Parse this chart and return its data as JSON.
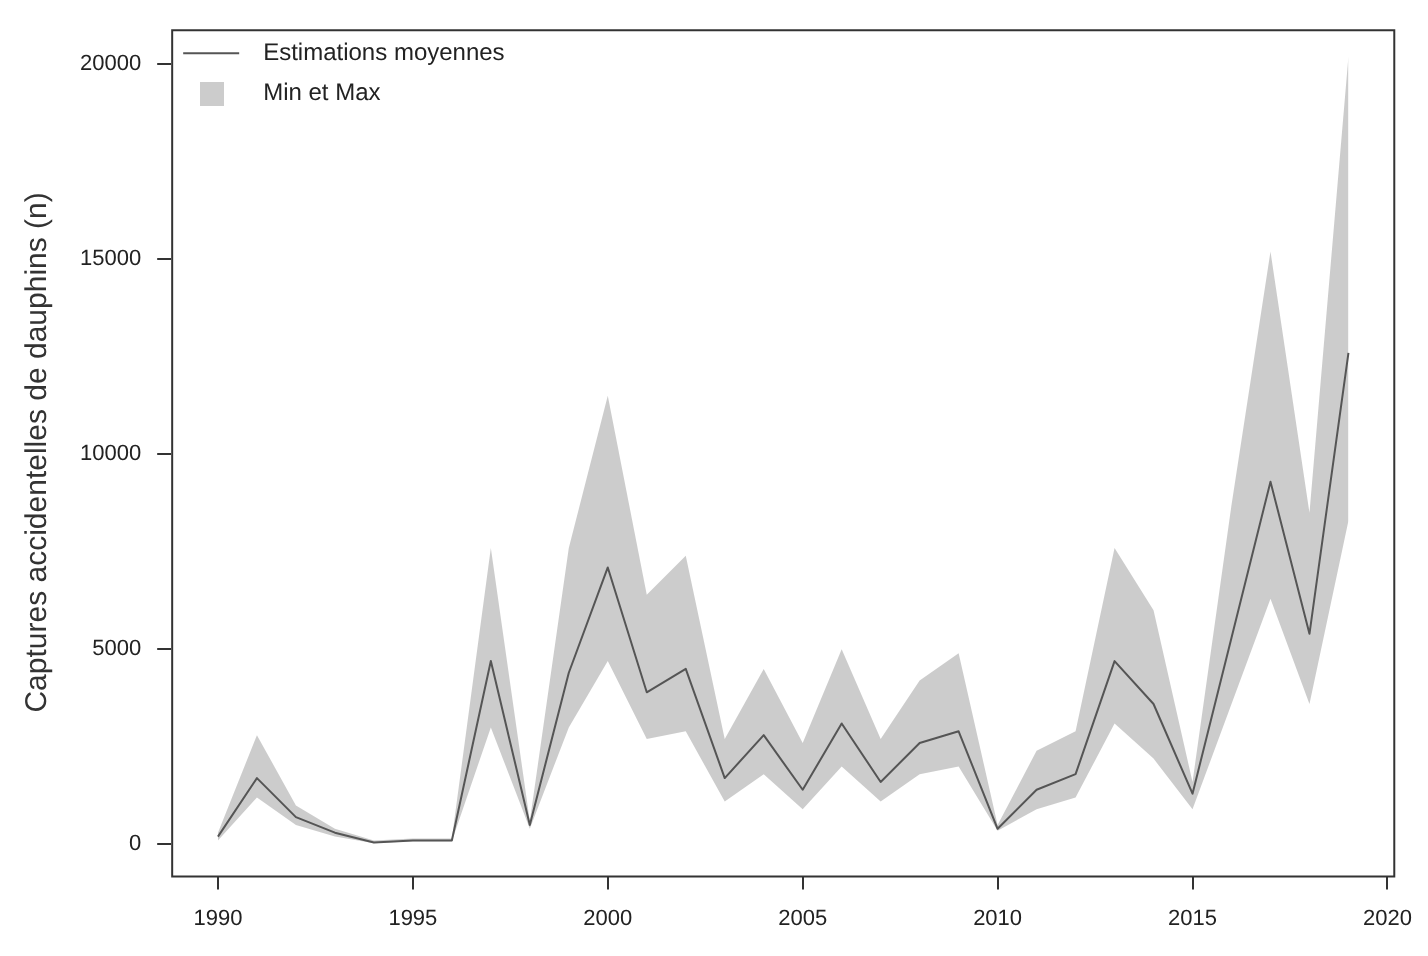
{
  "chart_data": {
    "type": "line",
    "ylabel": "Captures accidentelles de dauphins (n)",
    "x": [
      1990,
      1991,
      1992,
      1993,
      1994,
      1995,
      1996,
      1997,
      1998,
      1999,
      2000,
      2001,
      2002,
      2003,
      2004,
      2005,
      2006,
      2007,
      2008,
      2009,
      2010,
      2011,
      2012,
      2013,
      2014,
      2015,
      2016,
      2017,
      2018,
      2019
    ],
    "series": [
      {
        "name": "Estimations moyennes",
        "type": "line",
        "color": "#555555",
        "values": [
          200,
          1700,
          700,
          300,
          50,
          100,
          100,
          4700,
          500,
          4400,
          7100,
          3900,
          4500,
          1700,
          2800,
          1400,
          3100,
          1600,
          2600,
          2900,
          400,
          1400,
          1800,
          4700,
          3600,
          1300,
          5300,
          9300,
          5400,
          12600
        ],
        "lower": [
          100,
          1200,
          500,
          200,
          30,
          80,
          80,
          3000,
          400,
          3000,
          4700,
          2700,
          2900,
          1100,
          1800,
          900,
          2000,
          1100,
          1800,
          2000,
          350,
          900,
          1200,
          3100,
          2200,
          900,
          3600,
          6300,
          3600,
          8300
        ],
        "upper": [
          300,
          2800,
          1000,
          400,
          100,
          150,
          150,
          7600,
          600,
          7600,
          11500,
          6400,
          7400,
          2700,
          4500,
          2600,
          5000,
          2700,
          4200,
          4900,
          500,
          2400,
          2900,
          7600,
          6000,
          1600,
          8700,
          15200,
          8500,
          20200
        ]
      }
    ],
    "annotations": [
      "Min et Max"
    ],
    "xlim": [
      1988.8,
      2020.15
    ],
    "xticks": [
      1990,
      1995,
      2000,
      2005,
      2010,
      2015,
      2020
    ],
    "ylim": [
      -800,
      20900
    ],
    "yticks": [
      0,
      5000,
      10000,
      15000,
      20000
    ],
    "grid": false,
    "legend": "top left",
    "marker": "none",
    "line_style": "solid"
  }
}
